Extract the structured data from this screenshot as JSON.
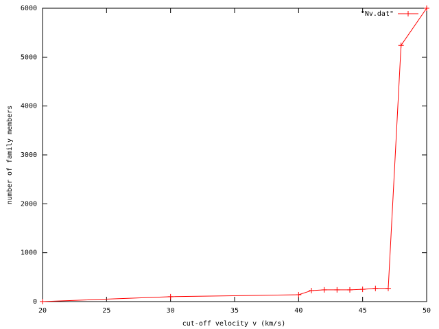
{
  "chart_data": {
    "type": "line",
    "x_label": "cut-off velocity v (km/s)",
    "y_label": "number of family members",
    "x": [
      20,
      30,
      40,
      41,
      42,
      43,
      44,
      45,
      46,
      47,
      48,
      50
    ],
    "series": [
      {
        "name": "\"Nv.dat\"",
        "color": "#ff0000",
        "values": [
          0,
          100,
          140,
          225,
          240,
          240,
          240,
          250,
          270,
          270,
          5240,
          6000
        ]
      }
    ],
    "xlim": [
      20,
      50
    ],
    "xticks": [
      20,
      25,
      30,
      35,
      40,
      45,
      50
    ],
    "ylim": [
      0,
      6000
    ],
    "yticks": [
      0,
      1000,
      2000,
      3000,
      4000,
      5000,
      6000
    ],
    "legend": "top-right"
  }
}
